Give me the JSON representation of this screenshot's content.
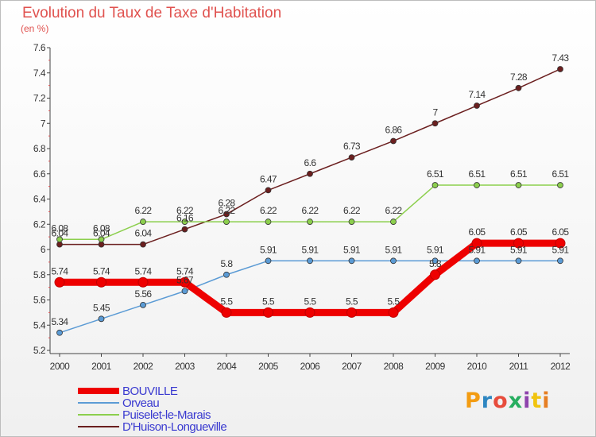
{
  "chart_data": {
    "type": "line",
    "title": "Evolution du Taux de Taxe d'Habitation",
    "subtitle": "(en %)",
    "xlabel": "",
    "ylabel": "",
    "x": [
      "2000",
      "2001",
      "2002",
      "2003",
      "2004",
      "2005",
      "2006",
      "2007",
      "2008",
      "2009",
      "2010",
      "2011",
      "2012"
    ],
    "ylim": [
      5.2,
      7.6
    ],
    "yticks": [
      "5.2",
      "5.4",
      "5.6",
      "5.8",
      "6",
      "6.2",
      "6.4",
      "6.6",
      "6.8",
      "7",
      "7.2",
      "7.4",
      "7.6"
    ],
    "grid": false,
    "legend_position": "bottom-left",
    "series": [
      {
        "name": "BOUVILLE",
        "color": "#ee0000",
        "values": [
          5.74,
          5.74,
          5.74,
          5.74,
          5.5,
          5.5,
          5.5,
          5.5,
          5.5,
          5.8,
          6.05,
          6.05,
          6.05
        ],
        "labels": [
          "5.74",
          "5.74",
          "5.74",
          "5.74",
          "5.5",
          "5.5",
          "5.5",
          "5.5",
          "5.5",
          "5.8",
          "6.05",
          "6.05",
          "6.05"
        ]
      },
      {
        "name": "Orveau",
        "color": "#5b9bd5",
        "values": [
          5.34,
          5.45,
          5.56,
          5.67,
          5.8,
          5.91,
          5.91,
          5.91,
          5.91,
          5.91,
          5.91,
          5.91,
          5.91
        ],
        "labels": [
          "5.34",
          "5.45",
          "5.56",
          "5.67",
          "5.8",
          "5.91",
          "5.91",
          "5.91",
          "5.91",
          "5.91",
          "5.91",
          "5.91",
          "5.91"
        ]
      },
      {
        "name": "Puiselet-le-Marais",
        "color": "#8ccf4d",
        "values": [
          6.08,
          6.08,
          6.22,
          6.22,
          6.22,
          6.22,
          6.22,
          6.22,
          6.22,
          6.51,
          6.51,
          6.51,
          6.51
        ],
        "labels": [
          "6.08",
          "6.08",
          "6.22",
          "6.22",
          "6.22",
          "6.22",
          "6.22",
          "6.22",
          "6.22",
          "6.51",
          "6.51",
          "6.51",
          "6.51"
        ]
      },
      {
        "name": "D'Huison-Longueville",
        "color": "#6b1f1f",
        "values": [
          6.04,
          6.04,
          6.04,
          6.16,
          6.28,
          6.47,
          6.6,
          6.73,
          6.86,
          7,
          7.14,
          7.28,
          7.43
        ],
        "labels": [
          "6.04",
          "6.04",
          "6.04",
          "6.16",
          "6.28",
          "6.47",
          "6.6",
          "6.73",
          "6.86",
          "7",
          "7.14",
          "7.28",
          "7.43"
        ]
      }
    ]
  },
  "logo": {
    "text": "Proxiti",
    "colors": [
      "#f39c12",
      "#2e86c1",
      "#e74c3c",
      "#27ae60",
      "#8e44ad",
      "#f1c40f",
      "#e67e22"
    ]
  }
}
